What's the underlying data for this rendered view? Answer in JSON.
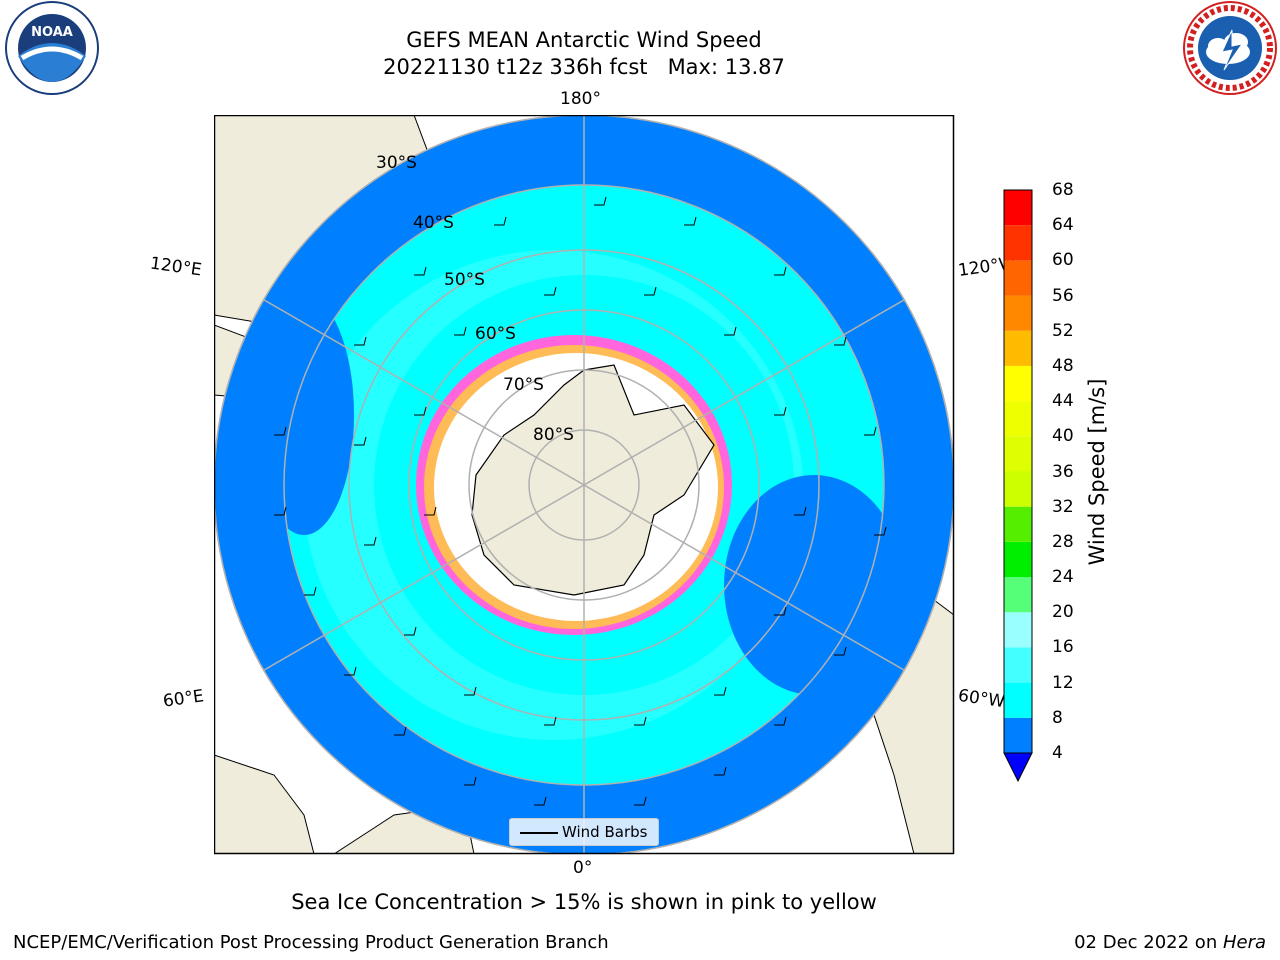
{
  "title_line1": "GEFS MEAN Antarctic Wind Speed",
  "title_line2": "20221130 t12z 336h fcst   Max: 13.87",
  "logos": {
    "noaa": {
      "text": "NOAA",
      "ring_text": "NATIONAL OCEANIC AND ATMOSPHERIC ADMINISTRATION · U.S. DEPARTMENT OF COMMERCE",
      "icon": "noaa-logo"
    },
    "nws": {
      "ring_text": "NATIONAL WEATHER SERVICE",
      "icon": "nws-logo"
    }
  },
  "map": {
    "projection": "south-polar-stereographic",
    "lon_labels": [
      "180°",
      "120°E",
      "120°W",
      "60°E",
      "60°W",
      "0°"
    ],
    "lat_labels": [
      "30°S",
      "40°S",
      "50°S",
      "60°S",
      "70°S",
      "80°S"
    ],
    "legend_label": "Wind Barbs",
    "colors": {
      "land": "#efecdb",
      "ice": "#ffffff",
      "grid": "#b0b0b0"
    }
  },
  "colorbar": {
    "label": "Wind Speed [m/s]",
    "ticks": [
      "68",
      "64",
      "60",
      "56",
      "52",
      "48",
      "44",
      "40",
      "36",
      "32",
      "28",
      "24",
      "20",
      "16",
      "12",
      "8",
      "4"
    ],
    "bins": [
      {
        "min": 4,
        "max": 8,
        "color": "#0080ff"
      },
      {
        "min": 8,
        "max": 12,
        "color": "#00ffff"
      },
      {
        "min": 12,
        "max": 16,
        "color": "#44ffff"
      },
      {
        "min": 16,
        "max": 20,
        "color": "#99ffff"
      },
      {
        "min": 20,
        "max": 24,
        "color": "#55ff77"
      },
      {
        "min": 24,
        "max": 28,
        "color": "#00ee00"
      },
      {
        "min": 28,
        "max": 32,
        "color": "#55ee00"
      },
      {
        "min": 32,
        "max": 36,
        "color": "#ccff00"
      },
      {
        "min": 36,
        "max": 40,
        "color": "#ddff00"
      },
      {
        "min": 40,
        "max": 44,
        "color": "#eeff00"
      },
      {
        "min": 44,
        "max": 48,
        "color": "#ffff00"
      },
      {
        "min": 48,
        "max": 52,
        "color": "#ffbb00"
      },
      {
        "min": 52,
        "max": 56,
        "color": "#ff8800"
      },
      {
        "min": 56,
        "max": 60,
        "color": "#ff6600"
      },
      {
        "min": 60,
        "max": 64,
        "color": "#ff3300"
      },
      {
        "min": 64,
        "max": 68,
        "color": "#ff0000"
      }
    ],
    "under_color": "#0000ff"
  },
  "caption": "Sea Ice Concentration > 15% is shown in pink to yellow",
  "footer_left": "NCEP/EMC/Verification Post Processing Product Generation Branch",
  "footer_right_date": "02 Dec 2022 on ",
  "footer_right_host": "Hera"
}
